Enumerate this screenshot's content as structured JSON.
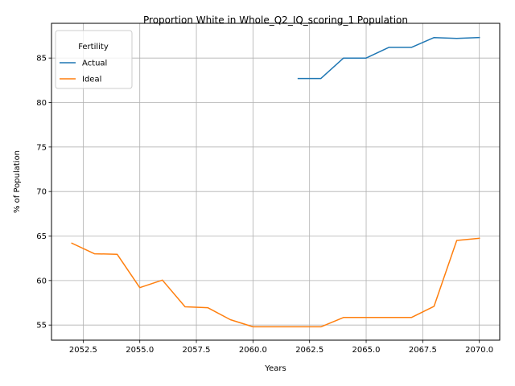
{
  "chart_data": {
    "type": "line",
    "title": "Proportion White in Whole_Q2_IQ_scoring_1 Population",
    "xlabel": "Years",
    "ylabel": "% of Population",
    "xlim": [
      2051.1,
      2070.9
    ],
    "ylim": [
      53.3,
      88.9
    ],
    "xticks": [
      2052.5,
      2055.0,
      2057.5,
      2060.0,
      2062.5,
      2065.0,
      2067.5,
      2070.0
    ],
    "xtick_labels": [
      "2052.5",
      "2055.0",
      "2057.5",
      "2060.0",
      "2062.5",
      "2065.0",
      "2067.5",
      "2070.0"
    ],
    "yticks": [
      55,
      60,
      65,
      70,
      75,
      80,
      85
    ],
    "ytick_labels": [
      "55",
      "60",
      "65",
      "70",
      "75",
      "80",
      "85"
    ],
    "grid": true,
    "legend": {
      "title": "Fertility",
      "placement": "top-left"
    },
    "series": [
      {
        "name": "Actual",
        "color": "#1f77b4",
        "x": [
          2062,
          2063,
          2064,
          2065,
          2066,
          2067,
          2068,
          2069,
          2070
        ],
        "y": [
          82.7,
          82.7,
          85.0,
          85.0,
          86.2,
          86.2,
          87.3,
          87.2,
          87.3
        ]
      },
      {
        "name": "Ideal",
        "color": "#ff7f0e",
        "x": [
          2052,
          2053,
          2054,
          2055,
          2056,
          2057,
          2058,
          2059,
          2060,
          2061,
          2062,
          2063,
          2064,
          2065,
          2066,
          2067,
          2068,
          2069,
          2070
        ],
        "y": [
          64.2,
          63.0,
          62.95,
          59.2,
          60.05,
          57.05,
          56.95,
          55.6,
          54.8,
          54.8,
          54.8,
          54.8,
          55.85,
          55.85,
          55.85,
          55.85,
          57.1,
          64.5,
          64.75
        ]
      }
    ]
  }
}
